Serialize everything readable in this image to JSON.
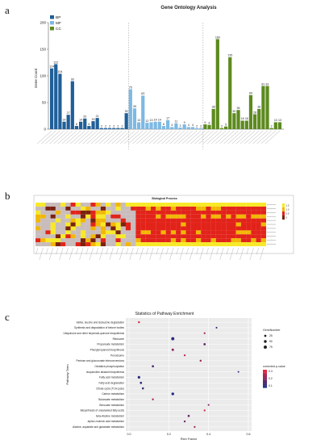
{
  "panels": {
    "a": "a",
    "b": "b",
    "c": "c"
  },
  "colors": {
    "bp": "#1f5f99",
    "mf": "#7db9e3",
    "cc": "#5d8a1f",
    "heat_high": "#e2231a",
    "heat_mid": "#f2b705",
    "heat_low": "#f7e928",
    "heat_grey": "#c9bcbc",
    "heat_dark": "#7a2210",
    "bubble_low": "#1a2b86",
    "bubble_high": "#e8243c"
  },
  "chart_data": [
    {
      "type": "bar",
      "title": "Gene Ontology Analysis",
      "ylabel": "Gene Count",
      "ylim": [
        0,
        200
      ],
      "yticks": [
        0,
        50,
        100,
        150,
        200
      ],
      "legend": [
        {
          "key": "bp",
          "name": "BP"
        },
        {
          "key": "mf",
          "name": "MF"
        },
        {
          "key": "cc",
          "name": "CC"
        }
      ],
      "legend_position": "top-left",
      "series": [
        {
          "name": "BP",
          "key": "bp",
          "values": [
            114,
            122,
            104,
            14,
            27,
            90,
            6,
            14,
            20,
            6,
            15,
            21,
            2,
            2,
            2,
            2,
            2,
            2,
            30
          ]
        },
        {
          "name": "MF",
          "key": "mf",
          "values": [
            75,
            39,
            13,
            63,
            12,
            13,
            14,
            14,
            6,
            17,
            4,
            11,
            3,
            9,
            4,
            4,
            2,
            2
          ]
        },
        {
          "name": "CC",
          "key": "cc",
          "values": [
            9,
            8,
            38,
            169,
            2,
            5,
            135,
            30,
            36,
            16,
            16,
            64,
            28,
            38,
            81,
            81,
            2,
            13,
            13
          ]
        }
      ],
      "value_labels": true
    },
    {
      "type": "heatmap",
      "title": "Biological Process",
      "rows": 11,
      "cols": 46,
      "legend_scale": [
        {
          "label": "1.5",
          "key": "heat_low"
        },
        {
          "label": "1.0",
          "key": "heat_mid"
        },
        {
          "label": "0.5",
          "key": "heat_high"
        },
        {
          "label": "0",
          "key": "heat_dark"
        }
      ]
    },
    {
      "type": "scatter",
      "title": "Statistics of Pathway Enrichment",
      "xlabel": "Rich Factor",
      "ylabel": "Pathway Term",
      "xlim": [
        0.0,
        0.6
      ],
      "xticks": [
        0.0,
        0.2,
        0.4,
        0.6
      ],
      "categories": [
        "Valine, leucine and isoleucine degradation",
        "Synthesis and degradation of ketone bodies",
        "Ubiquinone and other terpenoid-quinone biosynthesis",
        "Ribosome",
        "Propanoate metabolism",
        "Phenylpropanoid biosynthesis",
        "Peroxisome",
        "Pentose and glucuronate interconversions",
        "Oxidative phosphorylation",
        "Isoquinoline alkaloid biosynthesis",
        "Fatty acid metabolism",
        "Fatty acid degradation",
        "Citrate cycle (TCA cycle)",
        "Carbon metabolism",
        "Butanoate metabolism",
        "Benzoate metabolism",
        "Biosynthesis of unsaturated fatty acids",
        "beta-Alanine metabolism",
        "alpha-Linolenic acid metabolism",
        "Alanine, aspartate and glutamate metabolism"
      ],
      "points": [
        {
          "x": 0.05,
          "q": 0.32,
          "n": 14
        },
        {
          "x": 0.44,
          "q": 0.05,
          "n": 8
        },
        {
          "x": 0.38,
          "q": 0.22,
          "n": 10
        },
        {
          "x": 0.22,
          "q": 0.03,
          "n": 70
        },
        {
          "x": 0.38,
          "q": 0.12,
          "n": 24
        },
        {
          "x": 0.22,
          "q": 0.18,
          "n": 30
        },
        {
          "x": 0.28,
          "q": 0.27,
          "n": 12
        },
        {
          "x": 0.36,
          "q": 0.22,
          "n": 16
        },
        {
          "x": 0.12,
          "q": 0.08,
          "n": 22
        },
        {
          "x": 0.55,
          "q": 0.05,
          "n": 6
        },
        {
          "x": 0.05,
          "q": 0.03,
          "n": 40
        },
        {
          "x": 0.06,
          "q": 0.05,
          "n": 25
        },
        {
          "x": 0.07,
          "q": 0.06,
          "n": 18
        },
        {
          "x": 0.22,
          "q": 0.02,
          "n": 48
        },
        {
          "x": 0.12,
          "q": 0.25,
          "n": 14
        },
        {
          "x": 0.4,
          "q": 0.18,
          "n": 10
        },
        {
          "x": 0.38,
          "q": 0.31,
          "n": 12
        },
        {
          "x": 0.3,
          "q": 0.12,
          "n": 20
        },
        {
          "x": 0.28,
          "q": 0.14,
          "n": 15
        },
        {
          "x": 0.33,
          "q": 0.22,
          "n": 11
        }
      ],
      "size_legend_title": "GeneNumber",
      "size_legend": [
        25,
        50,
        75
      ],
      "color_legend_title": "corrected p-value",
      "color_legend_ticks": [
        "0.3",
        "0.2",
        "0.1"
      ]
    }
  ]
}
